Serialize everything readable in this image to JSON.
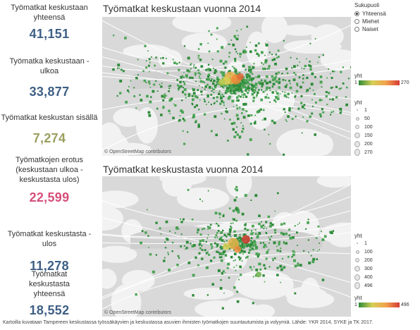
{
  "kpis": {
    "k1": {
      "label": "Työmatkat keskustaan yhteensä",
      "value": "41,151"
    },
    "k2": {
      "label": "Työmatka keskustaan - ulkoa",
      "value": "33,877"
    },
    "k3": {
      "label": "Työmatkat keskustan sisällä",
      "value": "7,274"
    },
    "k4": {
      "label": "Työmatkojen erotus (keskustaan ulkoa - keskustasta ulos)",
      "value": "22,599"
    },
    "k5": {
      "label": "Työmatkat keskustasta - ulos",
      "value": "11,278"
    },
    "k6": {
      "label": "Työmatkat keskustasta yhteensä",
      "value": "18,552"
    }
  },
  "maps": {
    "top": {
      "title": "Työmatkat keskustaan vuonna 2014",
      "attribution": "© OpenStreetMap contributors"
    },
    "bottom": {
      "title": "Työmatkat keskustasta vuonna 2014",
      "attribution": "© OpenStreetMap contributors"
    }
  },
  "filter": {
    "title": "Sukupuoli",
    "options": [
      "Yhteensä",
      "Miehet",
      "Naiset"
    ],
    "selected": "Yhteensä"
  },
  "legend_top": {
    "color_title": "yht",
    "color_min": "1",
    "color_max": "270",
    "size_title": "yht",
    "sizes": [
      "1",
      "50",
      "100",
      "150",
      "200",
      "270"
    ]
  },
  "legend_bottom": {
    "size_title": "yht",
    "sizes": [
      "1",
      "100",
      "200",
      "300",
      "400",
      "496"
    ],
    "color_title": "yht",
    "color_min": "1",
    "color_max": "496"
  },
  "colors": {
    "low": "#2e8b3a",
    "mid": "#d6cf57",
    "high": "#d63b35",
    "kpi_blue": "#3e5f85",
    "kpi_olive": "#9b9f5e",
    "kpi_pink": "#d64f7a"
  },
  "footer": "Kartoilla kuvataan Tampereen keskustassa työssäkäyvien ja keskustassa asuvien ihmisten työmatkojen suuntautumista ja volyymiä. Lähde: YKR 2014, SYKE ja TK 2017."
}
